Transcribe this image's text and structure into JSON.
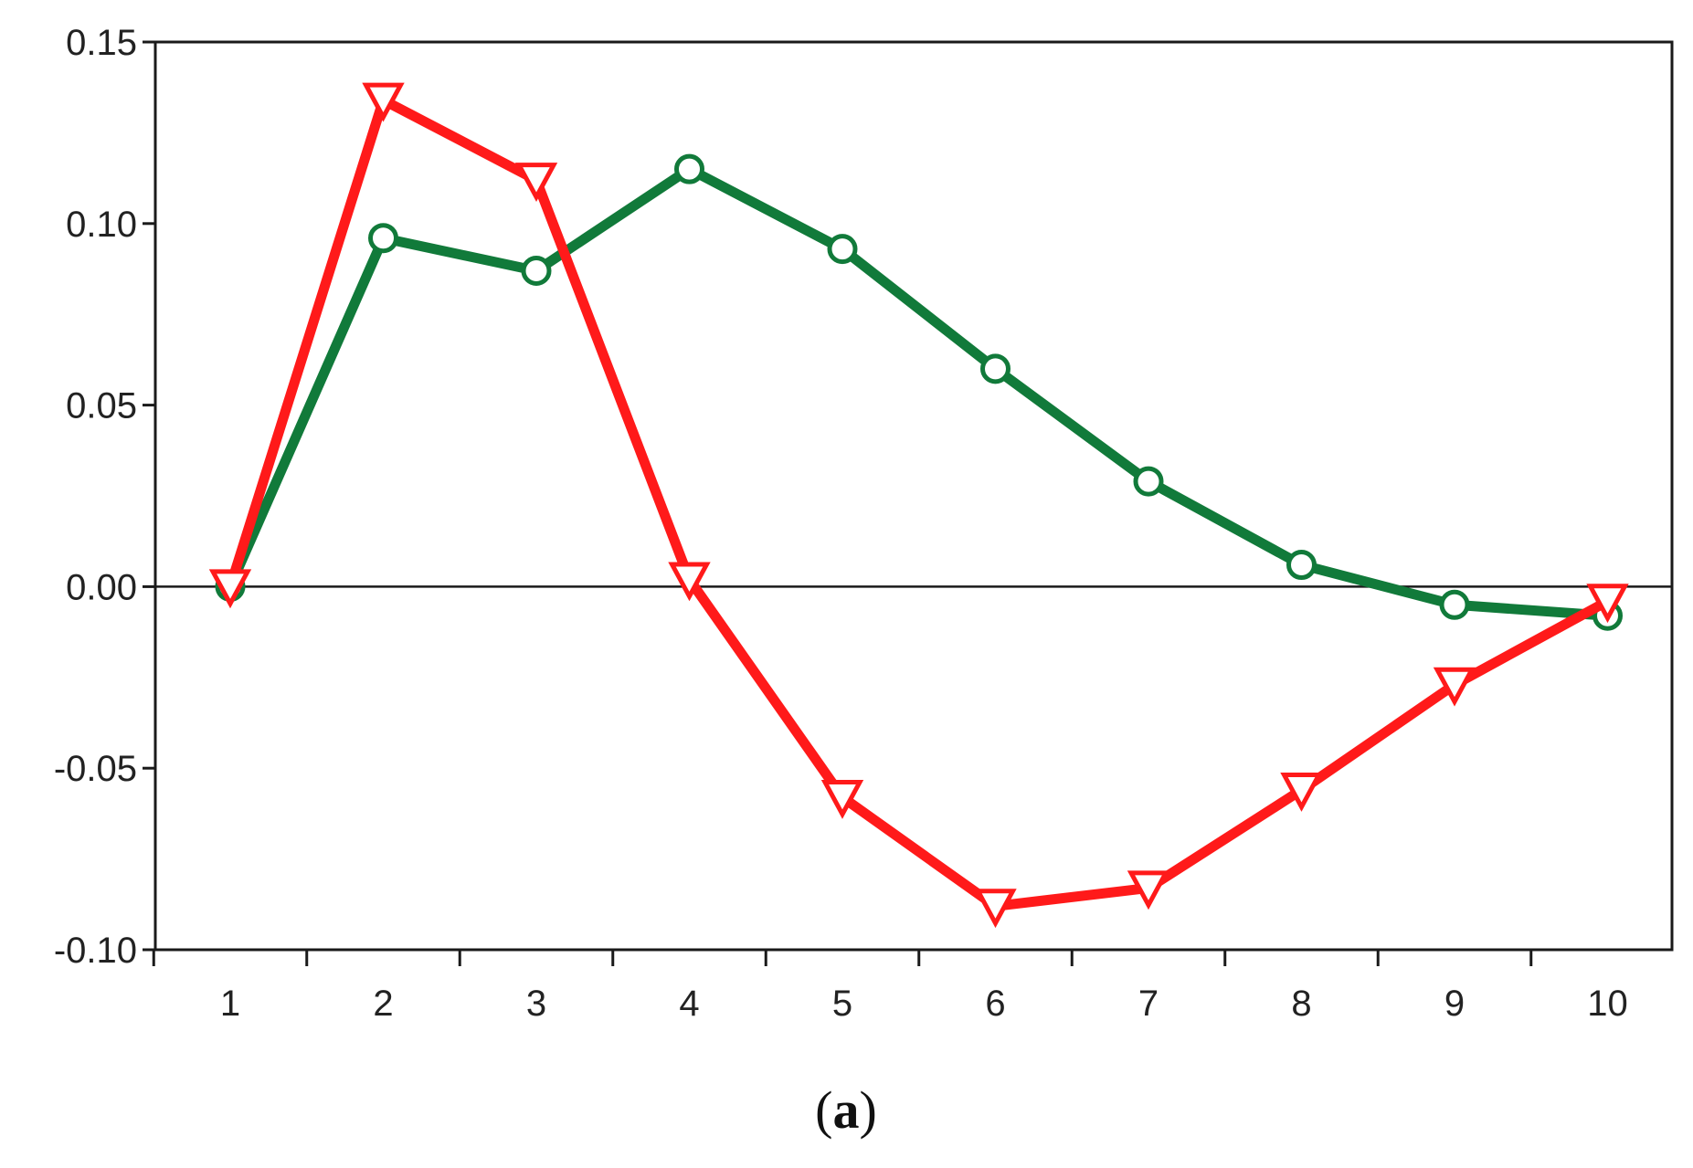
{
  "chart_data": {
    "type": "line",
    "title": "",
    "xlabel": "",
    "ylabel": "",
    "categories": [
      "1",
      "2",
      "3",
      "4",
      "5",
      "6",
      "7",
      "8",
      "9",
      "10"
    ],
    "ylim": [
      -0.1,
      0.15
    ],
    "yticks": [
      "0.15",
      "0.10",
      "0.05",
      "0.00",
      "-0.05",
      "-0.10"
    ],
    "ytick_values": [
      0.15,
      0.1,
      0.05,
      0.0,
      -0.05,
      -0.1
    ],
    "zero_line": true,
    "grid": false,
    "legend": "none",
    "series": [
      {
        "color": "#117a3a",
        "marker": "circle",
        "values": [
          0.0,
          0.096,
          0.087,
          0.115,
          0.093,
          0.06,
          0.029,
          0.006,
          -0.005,
          -0.008
        ]
      },
      {
        "color": "#ff1a1a",
        "marker": "triangle-down",
        "values": [
          0.0,
          0.134,
          0.112,
          0.002,
          -0.058,
          -0.088,
          -0.083,
          -0.056,
          -0.027,
          -0.004
        ]
      }
    ]
  },
  "caption": {
    "open": "(",
    "letter": "a",
    "close": ")"
  }
}
